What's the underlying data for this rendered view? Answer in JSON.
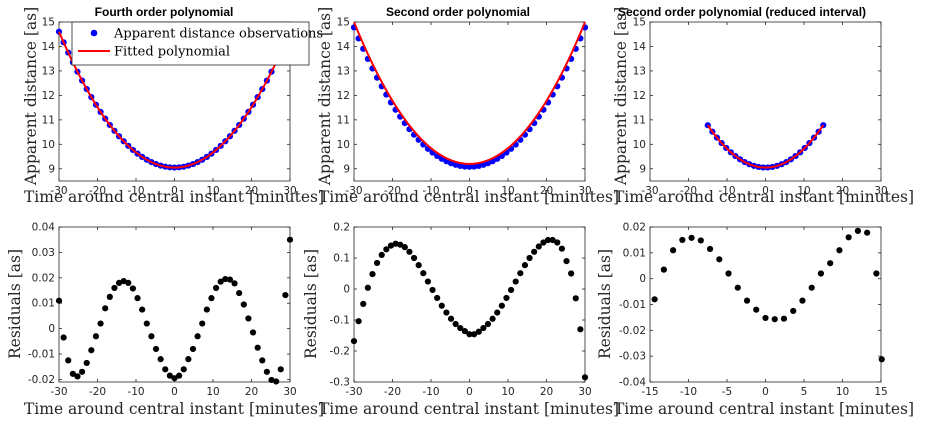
{
  "colors": {
    "observations": "#0000ff",
    "fit": "#ff0000",
    "residuals": "#000000",
    "axis": "#262626"
  },
  "legend": {
    "observations_label": "Apparent distance observations",
    "fit_label": "Fitted polynomial"
  },
  "chart_data": [
    {
      "id": "p1",
      "type": "scatter+line",
      "title": "Fourth order polynomial",
      "xlabel": "Time around central instant [minutes]",
      "ylabel": "Apparent distance [as]",
      "xlim": [
        -30,
        30
      ],
      "ylim": [
        8.5,
        15
      ],
      "xticks": [
        -30,
        -20,
        -10,
        0,
        10,
        20,
        30
      ],
      "xtick_labels": [
        "-30",
        "-20",
        "-10",
        "0",
        "10",
        "20",
        "30"
      ],
      "yticks": [
        9,
        10,
        11,
        12,
        13,
        14,
        15
      ],
      "ytick_labels": [
        "9",
        "10",
        "11",
        "12",
        "13",
        "14",
        "15"
      ],
      "curve": {
        "kind": "quadratic",
        "vertex": 9.05,
        "coef": 0.00617,
        "x_range": [
          -30,
          30
        ],
        "step": 1.2
      },
      "fit": {
        "kind": "quadratic",
        "vertex": 9.05,
        "coef": 0.00617,
        "x_range": [
          -30,
          30
        ]
      }
    },
    {
      "id": "p2",
      "type": "scatter+line",
      "title": "Second order polynomial",
      "xlabel": "Time around central instant [minutes]",
      "ylabel": "Apparent distance [as]",
      "xlim": [
        -30,
        30
      ],
      "ylim": [
        8.5,
        15
      ],
      "xticks": [
        -30,
        -20,
        -10,
        0,
        10,
        20,
        30
      ],
      "xtick_labels": [
        "-30",
        "-20",
        "-10",
        "0",
        "10",
        "20",
        "30"
      ],
      "yticks": [
        9,
        10,
        11,
        12,
        13,
        14,
        15
      ],
      "ytick_labels": [
        "9",
        "10",
        "11",
        "12",
        "13",
        "14",
        "15"
      ],
      "curve": {
        "kind": "quadratic",
        "vertex": 9.08,
        "coef": 0.00633,
        "x_range": [
          -30,
          30
        ],
        "step": 1.2,
        "residual_wave": 0.15
      },
      "fit": {
        "kind": "quadratic",
        "vertex": 9.2,
        "coef": 0.00644,
        "x_range": [
          -30,
          30
        ]
      }
    },
    {
      "id": "p3",
      "type": "scatter+line",
      "title": "Second order polynomial (reduced interval)",
      "xlabel": "Time around central instant [minutes]",
      "ylabel": "Apparent distance [as]",
      "xlim": [
        -30,
        30
      ],
      "ylim": [
        8.5,
        15
      ],
      "xticks": [
        -30,
        -20,
        -10,
        0,
        10,
        20,
        30
      ],
      "xtick_labels": [
        "-30",
        "-20",
        "-10",
        "0",
        "10",
        "20",
        "30"
      ],
      "yticks": [
        9,
        10,
        11,
        12,
        13,
        14,
        15
      ],
      "ytick_labels": [
        "9",
        "10",
        "11",
        "12",
        "13",
        "14",
        "15"
      ],
      "curve": {
        "kind": "quadratic",
        "vertex": 9.05,
        "coef": 0.0077,
        "x_range": [
          -15,
          15
        ],
        "step": 1.2
      },
      "fit": {
        "kind": "quadratic",
        "vertex": 9.05,
        "coef": 0.0077,
        "x_range": [
          -15,
          15
        ]
      }
    },
    {
      "id": "r1",
      "type": "scatter",
      "xlabel": "Time around central instant [minutes]",
      "ylabel": "Residuals [as]",
      "xlim": [
        -30,
        30
      ],
      "ylim": [
        -0.021,
        0.04
      ],
      "xticks": [
        -30,
        -20,
        -10,
        0,
        10,
        20,
        30
      ],
      "xtick_labels": [
        "-30",
        "-20",
        "-10",
        "0",
        "10",
        "20",
        "30"
      ],
      "yticks": [
        -0.02,
        -0.01,
        0,
        0.01,
        0.02,
        0.03,
        0.04
      ],
      "ytick_labels": [
        "-0.02",
        "-0.01",
        "0",
        "0.01",
        "0.02",
        "0.03",
        "0.04"
      ],
      "points": {
        "x": [
          -30,
          -28.8,
          -27.6,
          -26.4,
          -25.2,
          -24,
          -22.8,
          -21.6,
          -20.4,
          -19.2,
          -18,
          -16.8,
          -15.6,
          -14.4,
          -13.2,
          -12,
          -10.8,
          -9.6,
          -8.4,
          -7.2,
          -6,
          -4.8,
          -3.6,
          -2.4,
          -1.2,
          0,
          1.2,
          2.4,
          3.6,
          4.8,
          6,
          7.2,
          8.4,
          9.6,
          10.8,
          12,
          13.2,
          14.4,
          15.6,
          16.8,
          18,
          19.2,
          20.4,
          21.6,
          22.8,
          24,
          25.2,
          26.4,
          27.6,
          28.8,
          30
        ],
        "y": [
          0.011,
          -0.0035,
          -0.0125,
          -0.0178,
          -0.0188,
          -0.017,
          -0.0135,
          -0.0085,
          -0.003,
          0.002,
          0.008,
          0.0125,
          0.016,
          0.018,
          0.0187,
          0.018,
          0.0158,
          0.012,
          0.0075,
          0.002,
          -0.003,
          -0.008,
          -0.012,
          -0.016,
          -0.0185,
          -0.0195,
          -0.0185,
          -0.016,
          -0.012,
          -0.008,
          -0.003,
          0.002,
          0.0075,
          0.012,
          0.016,
          0.0185,
          0.0195,
          0.0193,
          0.0178,
          0.014,
          0.0095,
          0.004,
          -0.0015,
          -0.0075,
          -0.0125,
          -0.017,
          -0.0202,
          -0.0208,
          -0.016,
          0.0132,
          0.035
        ]
      }
    },
    {
      "id": "r2",
      "type": "scatter",
      "xlabel": "Time around central instant [minutes]",
      "ylabel": "Residuals [as]",
      "xlim": [
        -30,
        30
      ],
      "ylim": [
        -0.3,
        0.2
      ],
      "xticks": [
        -30,
        -20,
        -10,
        0,
        10,
        20,
        30
      ],
      "xtick_labels": [
        "-30",
        "-20",
        "-10",
        "0",
        "10",
        "20",
        "30"
      ],
      "yticks": [
        -0.3,
        -0.2,
        -0.1,
        0,
        0.1,
        0.2
      ],
      "ytick_labels": [
        "-0.3",
        "-0.2",
        "-0.1",
        "0",
        "0.1",
        "0.2"
      ],
      "points": {
        "x": [
          -30,
          -28.8,
          -27.6,
          -26.4,
          -25.2,
          -24,
          -22.8,
          -21.6,
          -20.4,
          -19.2,
          -18,
          -16.8,
          -15.6,
          -14.4,
          -13.2,
          -12,
          -10.8,
          -9.6,
          -8.4,
          -7.2,
          -6,
          -4.8,
          -3.6,
          -2.4,
          -1.2,
          0,
          1.2,
          2.4,
          3.6,
          4.8,
          6,
          7.2,
          8.4,
          9.6,
          10.8,
          12,
          13.2,
          14.4,
          15.6,
          16.8,
          18,
          19.2,
          20.4,
          21.6,
          22.8,
          24,
          25.2,
          26.4,
          27.6,
          28.8,
          30
        ],
        "y": [
          -0.168,
          -0.104,
          -0.048,
          0.004,
          0.048,
          0.084,
          0.11,
          0.128,
          0.14,
          0.146,
          0.143,
          0.135,
          0.12,
          0.1,
          0.077,
          0.051,
          0.024,
          -0.003,
          -0.029,
          -0.054,
          -0.076,
          -0.096,
          -0.113,
          -0.126,
          -0.136,
          -0.146,
          -0.146,
          -0.138,
          -0.126,
          -0.113,
          -0.096,
          -0.076,
          -0.054,
          -0.029,
          -0.003,
          0.024,
          0.051,
          0.077,
          0.1,
          0.12,
          0.137,
          0.15,
          0.158,
          0.158,
          0.15,
          0.13,
          0.09,
          0.05,
          -0.03,
          -0.13,
          -0.285
        ]
      }
    },
    {
      "id": "r3",
      "type": "scatter",
      "xlabel": "Time around central instant [minutes]",
      "ylabel": "Residuals [as]",
      "xlim": [
        -15,
        15
      ],
      "ylim": [
        -0.04,
        0.02
      ],
      "xticks": [
        -15,
        -10,
        -5,
        0,
        5,
        10,
        15
      ],
      "xtick_labels": [
        "-15",
        "-10",
        "-5",
        "0",
        "5",
        "10",
        "15"
      ],
      "yticks": [
        -0.04,
        -0.03,
        -0.02,
        -0.01,
        0,
        0.01,
        0.02
      ],
      "ytick_labels": [
        "-0.04",
        "-0.03",
        "-0.02",
        "-0.01",
        "0",
        "0.01",
        "0.02"
      ],
      "points": {
        "x": [
          -14.4,
          -13.2,
          -12,
          -10.8,
          -9.6,
          -8.4,
          -7.2,
          -6,
          -4.8,
          -3.6,
          -2.4,
          -1.2,
          0,
          1.2,
          2.4,
          3.6,
          4.8,
          6,
          7.2,
          8.4,
          9.6,
          10.8,
          12,
          13.2,
          14.4,
          15.1
        ],
        "y": [
          -0.008,
          0.0035,
          0.011,
          0.015,
          0.0158,
          0.0148,
          0.0115,
          0.0075,
          0.002,
          -0.0035,
          -0.0085,
          -0.012,
          -0.0152,
          -0.0157,
          -0.0155,
          -0.0125,
          -0.0085,
          -0.0035,
          0.002,
          0.006,
          0.011,
          0.016,
          0.0185,
          0.0178,
          0.002,
          -0.0312
        ]
      }
    }
  ]
}
